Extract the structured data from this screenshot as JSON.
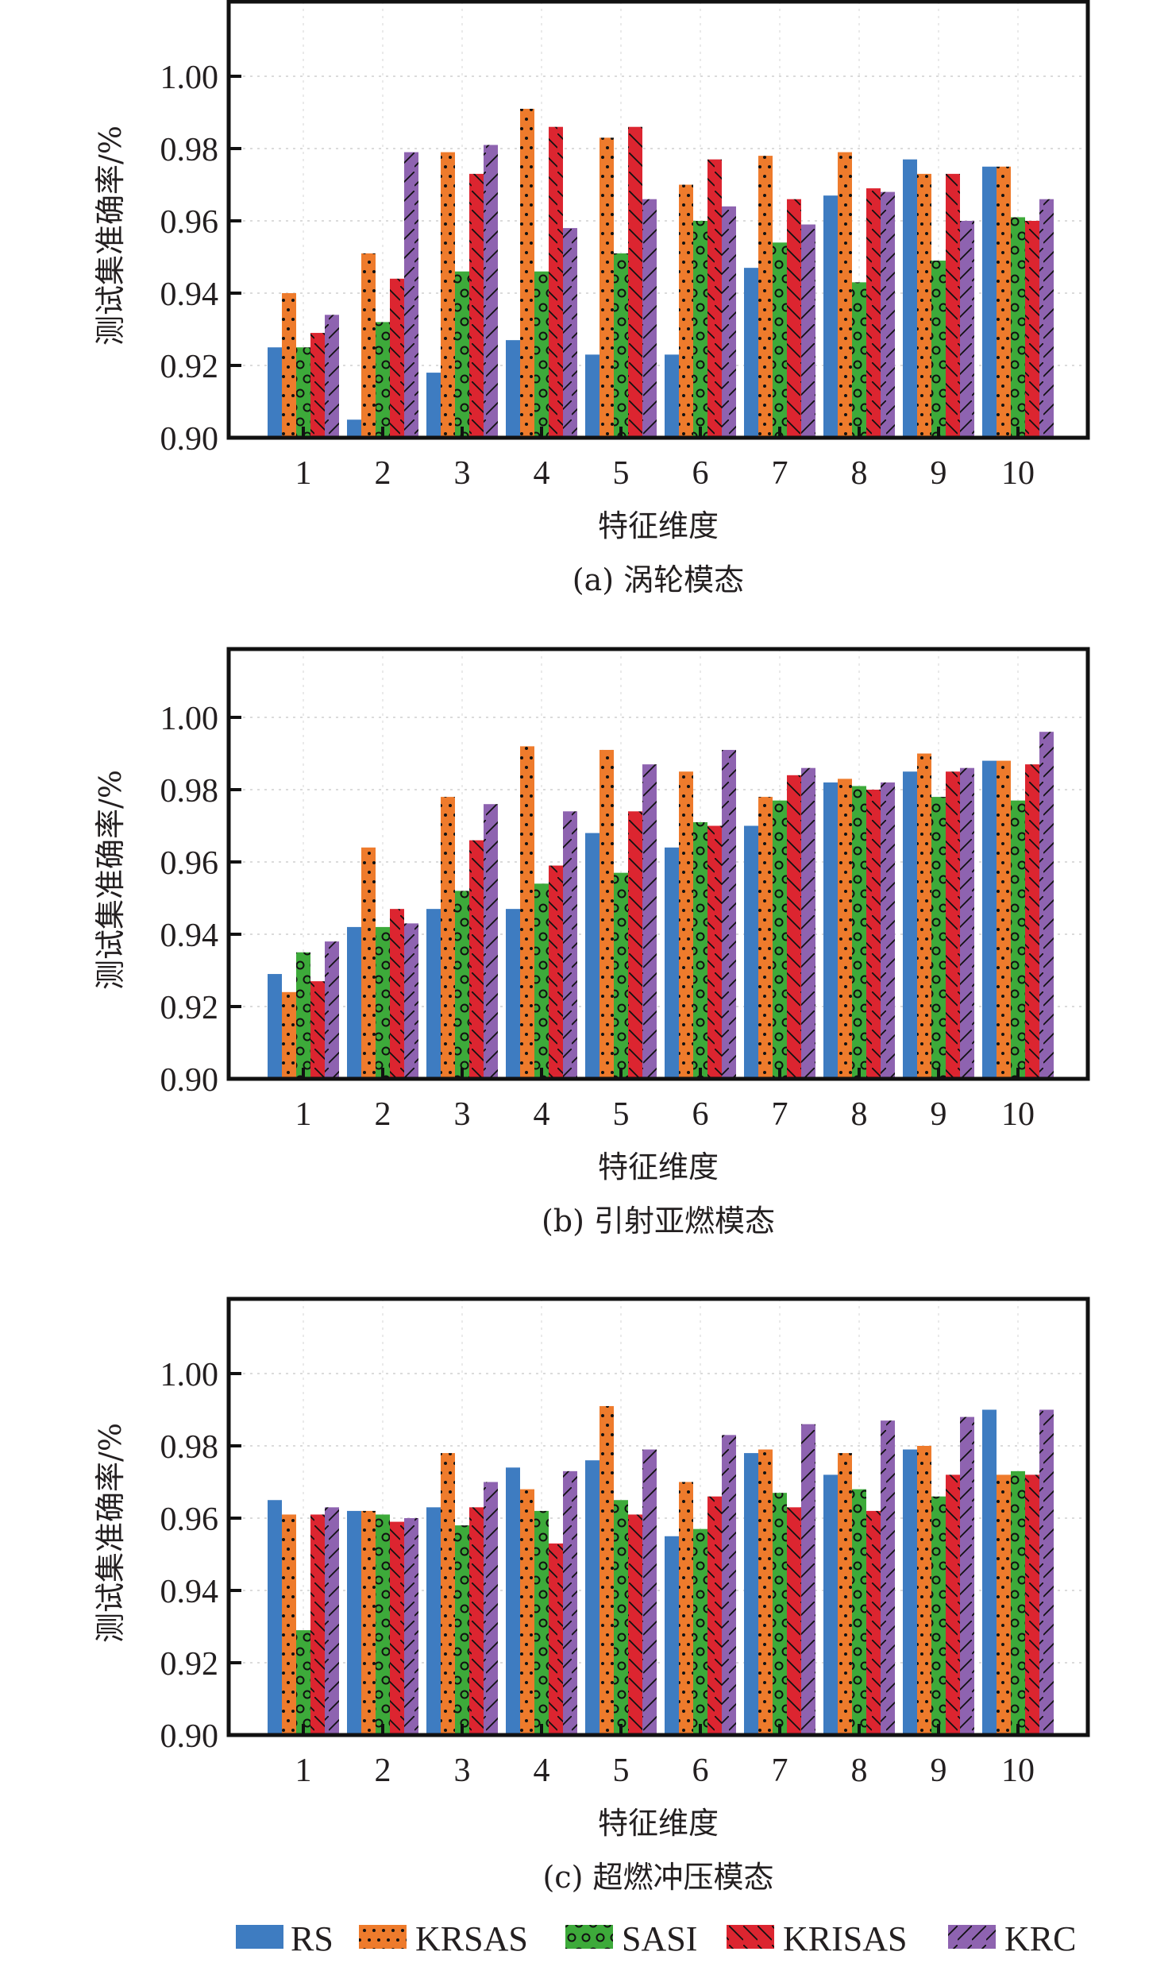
{
  "colors": {
    "RS": "#3e7cc1",
    "KRSAS": "#ee7b2c",
    "SASI": "#3daa3a",
    "KRISAS": "#dc2530",
    "KRC": "#8e63b0"
  },
  "legend": {
    "placement": "bottom-center",
    "items": [
      {
        "name": "RS",
        "pattern": "solid"
      },
      {
        "name": "KRSAS",
        "pattern": "dots"
      },
      {
        "name": "SASI",
        "pattern": "circles"
      },
      {
        "name": "KRISAS",
        "pattern": "backslash-hatch"
      },
      {
        "name": "KRC",
        "pattern": "slash-hatch"
      }
    ]
  },
  "chart_data": [
    {
      "type": "bar",
      "title": "(a) 涡轮模态",
      "xlabel": "特征维度",
      "ylabel": "测试集准确率/%",
      "ylim": [
        0.9,
        1.02
      ],
      "yticks": [
        "0.90",
        "0.92",
        "0.94",
        "0.96",
        "0.98",
        "1.00"
      ],
      "grid": true,
      "categories": [
        "1",
        "2",
        "3",
        "4",
        "5",
        "6",
        "7",
        "8",
        "9",
        "10"
      ],
      "series": [
        {
          "name": "RS",
          "values": [
            0.925,
            0.905,
            0.918,
            0.927,
            0.923,
            0.923,
            0.947,
            0.967,
            0.977,
            0.975
          ]
        },
        {
          "name": "KRSAS",
          "values": [
            0.94,
            0.951,
            0.979,
            0.991,
            0.983,
            0.97,
            0.978,
            0.979,
            0.973,
            0.975
          ]
        },
        {
          "name": "SASI",
          "values": [
            0.925,
            0.932,
            0.946,
            0.946,
            0.951,
            0.96,
            0.954,
            0.943,
            0.949,
            0.961
          ]
        },
        {
          "name": "KRISAS",
          "values": [
            0.929,
            0.944,
            0.973,
            0.986,
            0.986,
            0.977,
            0.966,
            0.969,
            0.973,
            0.96
          ]
        },
        {
          "name": "KRC",
          "values": [
            0.934,
            0.979,
            0.981,
            0.958,
            0.966,
            0.964,
            0.959,
            0.968,
            0.96,
            0.966
          ]
        }
      ]
    },
    {
      "type": "bar",
      "title": "(b) 引射亚燃模态",
      "xlabel": "特征维度",
      "ylabel": "测试集准确率/%",
      "ylim": [
        0.9,
        1.02
      ],
      "yticks": [
        "0.90",
        "0.92",
        "0.94",
        "0.96",
        "0.98",
        "1.00"
      ],
      "grid": true,
      "categories": [
        "1",
        "2",
        "3",
        "4",
        "5",
        "6",
        "7",
        "8",
        "9",
        "10"
      ],
      "series": [
        {
          "name": "RS",
          "values": [
            0.929,
            0.942,
            0.947,
            0.947,
            0.968,
            0.964,
            0.97,
            0.982,
            0.985,
            0.988
          ]
        },
        {
          "name": "KRSAS",
          "values": [
            0.924,
            0.964,
            0.978,
            0.992,
            0.991,
            0.985,
            0.978,
            0.983,
            0.99,
            0.988
          ]
        },
        {
          "name": "SASI",
          "values": [
            0.935,
            0.942,
            0.952,
            0.954,
            0.957,
            0.971,
            0.977,
            0.981,
            0.978,
            0.977
          ]
        },
        {
          "name": "KRISAS",
          "values": [
            0.927,
            0.947,
            0.966,
            0.959,
            0.974,
            0.97,
            0.984,
            0.98,
            0.985,
            0.987
          ]
        },
        {
          "name": "KRC",
          "values": [
            0.938,
            0.943,
            0.976,
            0.974,
            0.987,
            0.991,
            0.986,
            0.982,
            0.986,
            0.996
          ]
        }
      ]
    },
    {
      "type": "bar",
      "title": "(c) 超燃冲压模态",
      "xlabel": "特征维度",
      "ylabel": "测试集准确率/%",
      "ylim": [
        0.9,
        1.02
      ],
      "yticks": [
        "0.90",
        "0.92",
        "0.94",
        "0.96",
        "0.98",
        "1.00"
      ],
      "grid": true,
      "categories": [
        "1",
        "2",
        "3",
        "4",
        "5",
        "6",
        "7",
        "8",
        "9",
        "10"
      ],
      "series": [
        {
          "name": "RS",
          "values": [
            0.965,
            0.962,
            0.963,
            0.974,
            0.976,
            0.955,
            0.978,
            0.972,
            0.979,
            0.99
          ]
        },
        {
          "name": "KRSAS",
          "values": [
            0.961,
            0.962,
            0.978,
            0.968,
            0.991,
            0.97,
            0.979,
            0.978,
            0.98,
            0.972
          ]
        },
        {
          "name": "SASI",
          "values": [
            0.929,
            0.961,
            0.958,
            0.962,
            0.965,
            0.957,
            0.967,
            0.968,
            0.966,
            0.973
          ]
        },
        {
          "name": "KRISAS",
          "values": [
            0.961,
            0.959,
            0.963,
            0.953,
            0.961,
            0.966,
            0.963,
            0.962,
            0.972,
            0.972
          ]
        },
        {
          "name": "KRC",
          "values": [
            0.963,
            0.96,
            0.97,
            0.973,
            0.979,
            0.983,
            0.986,
            0.987,
            0.988,
            0.99
          ]
        }
      ]
    }
  ]
}
